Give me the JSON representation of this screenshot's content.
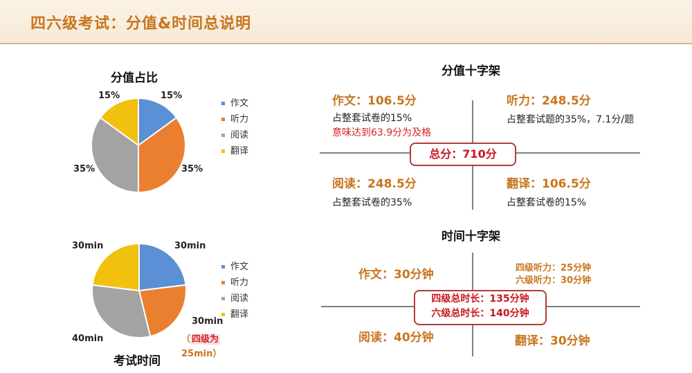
{
  "header": {
    "title": "四六级考试：分值&时间总说明"
  },
  "score_pie": {
    "title": "分值占比",
    "legend": [
      {
        "name": "作文",
        "color": "#5b8fd6"
      },
      {
        "name": "听力",
        "color": "#ea7f2f"
      },
      {
        "name": "阅读",
        "color": "#a3a3a3"
      },
      {
        "name": "翻译",
        "color": "#f2c00e"
      }
    ],
    "labels": [
      "15%",
      "35%",
      "35%",
      "15%"
    ]
  },
  "time_pie": {
    "title": "考试时间",
    "legend": [
      {
        "name": "作文",
        "color": "#5b8fd6"
      },
      {
        "name": "听力",
        "color": "#ea7f2f"
      },
      {
        "name": "阅读",
        "color": "#a3a3a3"
      },
      {
        "name": "翻译",
        "color": "#f2c00e"
      }
    ],
    "labels": [
      "30min",
      "30min",
      "40min",
      "30min"
    ],
    "note_line1": "（四级为",
    "note_line2": "25min）"
  },
  "score_cross": {
    "title": "分值十字架",
    "writing_head": "作文：106.5分",
    "writing_line1": "占整套试卷的15%",
    "writing_line2": "意味达到63.9分为及格",
    "listening_head": "听力：248.5分",
    "listening_line1": "占整套试题的35%，7.1分/题",
    "reading_head": "阅读：248.5分",
    "reading_line1": "占整套试卷的35%",
    "translation_head": "翻译：106.5分",
    "translation_line1": "占整套试卷的15%",
    "total": "总分：710分"
  },
  "time_cross": {
    "title": "时间十字架",
    "writing": "作文：30分钟",
    "listening_cet4": "四级听力：25分钟",
    "listening_cet6": "六级听力：30分钟",
    "reading": "阅读：40分钟",
    "translation": "翻译：30分钟",
    "total_cet4": "四级总时长：135分钟",
    "total_cet6": "六级总时长：140分钟"
  },
  "chart_data": [
    {
      "type": "pie",
      "title": "分值占比",
      "categories": [
        "作文",
        "听力",
        "阅读",
        "翻译"
      ],
      "values": [
        15,
        35,
        35,
        15
      ],
      "colors": [
        "#5b8fd6",
        "#ea7f2f",
        "#a3a3a3",
        "#f2c00e"
      ],
      "legend": "right"
    },
    {
      "type": "pie",
      "title": "考试时间",
      "categories": [
        "作文",
        "听力",
        "阅读",
        "翻译"
      ],
      "values": [
        30,
        30,
        40,
        30
      ],
      "colors": [
        "#5b8fd6",
        "#ea7f2f",
        "#a3a3a3",
        "#f2c00e"
      ],
      "legend": "right"
    }
  ]
}
